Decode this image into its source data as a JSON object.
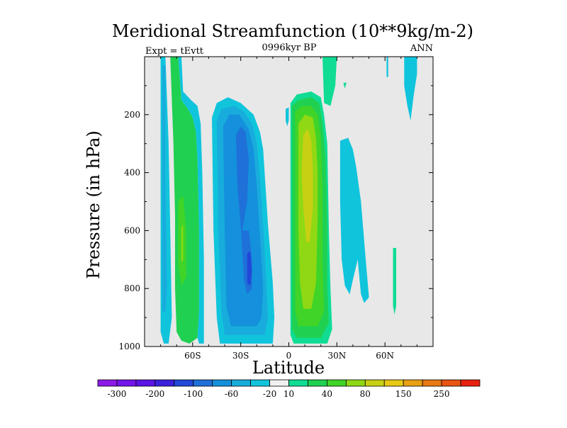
{
  "chart_data": {
    "type": "heatmap",
    "title": "Meridional Streamfunction (10**9kg/m-2)",
    "subtitle": "0996kyr BP",
    "left_annotation": "Expt = tEvtt",
    "right_annotation": "ANN",
    "xlabel": "Latitude",
    "ylabel": "Pressure (in hPa)",
    "xlim": [
      -90,
      90
    ],
    "ylim": [
      0,
      1000
    ],
    "y_inverted": true,
    "x_ticks": [
      {
        "value": -60,
        "label": "60S"
      },
      {
        "value": -30,
        "label": "30S"
      },
      {
        "value": 0,
        "label": "0"
      },
      {
        "value": 30,
        "label": "30N"
      },
      {
        "value": 60,
        "label": "60N"
      }
    ],
    "y_ticks": [
      {
        "value": 200,
        "label": "200"
      },
      {
        "value": 400,
        "label": "400"
      },
      {
        "value": 600,
        "label": "600"
      },
      {
        "value": 800,
        "label": "800"
      },
      {
        "value": 1000,
        "label": "1000"
      }
    ],
    "background_color": "#e8e8e8",
    "colorbar": {
      "colors": [
        "#8d19e6",
        "#7414ea",
        "#5a14e6",
        "#3b20dc",
        "#2148d8",
        "#1f70d8",
        "#1490dc",
        "#18acdc",
        "#10c4dc",
        "#f0f0f0",
        "#10dc94",
        "#20d050",
        "#40d428",
        "#90d814",
        "#c8d014",
        "#e8c814",
        "#e8a014",
        "#e87814",
        "#e85414",
        "#e82010"
      ],
      "labels": [
        {
          "after_index": 1,
          "text": "-300"
        },
        {
          "after_index": 3,
          "text": "-200"
        },
        {
          "after_index": 5,
          "text": "-100"
        },
        {
          "after_index": 7,
          "text": "-60"
        },
        {
          "after_index": 9,
          "text": "-20"
        },
        {
          "after_index": 10,
          "text": "10"
        },
        {
          "after_index": 12,
          "text": "40"
        },
        {
          "after_index": 14,
          "text": "80"
        },
        {
          "after_index": 16,
          "text": "150"
        },
        {
          "after_index": 18,
          "text": "250"
        }
      ]
    },
    "contours": [
      {
        "name": "sh-polar-cell-outer",
        "color": "#10c4dc",
        "points": [
          [
            -80,
            0
          ],
          [
            -77,
            0
          ],
          [
            -75,
            300
          ],
          [
            -74,
            600
          ],
          [
            -73,
            900
          ],
          [
            -75,
            990
          ],
          [
            -78,
            990
          ],
          [
            -80,
            950
          ],
          [
            -80,
            600
          ],
          [
            -80,
            300
          ]
        ]
      },
      {
        "name": "sh-polar-cell-inner",
        "color": "#18acdc",
        "points": [
          [
            -79,
            30
          ],
          [
            -77,
            30
          ],
          [
            -77,
            450
          ],
          [
            -76,
            800
          ],
          [
            -77,
            880
          ],
          [
            -79,
            880
          ],
          [
            -79,
            600
          ]
        ]
      },
      {
        "name": "sh-ferrel-outer",
        "color": "#20d050",
        "points": [
          [
            -74,
            0
          ],
          [
            -69,
            0
          ],
          [
            -67,
            150
          ],
          [
            -63,
            180
          ],
          [
            -60,
            210
          ],
          [
            -58,
            260
          ],
          [
            -57,
            350
          ],
          [
            -56,
            600
          ],
          [
            -56,
            880
          ],
          [
            -57,
            970
          ],
          [
            -62,
            990
          ],
          [
            -67,
            980
          ],
          [
            -70,
            950
          ],
          [
            -71,
            800
          ],
          [
            -71,
            550
          ],
          [
            -72,
            300
          ]
        ]
      },
      {
        "name": "sh-ferrel-inner",
        "color": "#40d428",
        "points": [
          [
            -69,
            500
          ],
          [
            -66,
            480
          ],
          [
            -64,
            600
          ],
          [
            -64,
            760
          ],
          [
            -67,
            790
          ],
          [
            -69,
            720
          ]
        ]
      },
      {
        "name": "sh-ferrel-core",
        "color": "#90d814",
        "points": [
          [
            -67,
            590
          ],
          [
            -66,
            580
          ],
          [
            -66,
            700
          ],
          [
            -67,
            710
          ]
        ]
      },
      {
        "name": "sh-ferrel-edge",
        "color": "#10c4dc",
        "points": [
          [
            -69,
            0
          ],
          [
            -67,
            0
          ],
          [
            -66,
            120
          ],
          [
            -61,
            150
          ],
          [
            -57,
            170
          ],
          [
            -55,
            230
          ],
          [
            -54,
            400
          ],
          [
            -53,
            700
          ],
          [
            -53,
            990
          ],
          [
            -56,
            990
          ],
          [
            -57,
            970
          ],
          [
            -56,
            880
          ],
          [
            -56,
            600
          ],
          [
            -57,
            350
          ],
          [
            -58,
            260
          ],
          [
            -60,
            210
          ],
          [
            -63,
            180
          ],
          [
            -67,
            150
          ]
        ]
      },
      {
        "name": "sh-hadley-outer",
        "color": "#10c4dc",
        "points": [
          [
            -48,
            210
          ],
          [
            -45,
            160
          ],
          [
            -38,
            140
          ],
          [
            -30,
            160
          ],
          [
            -26,
            180
          ],
          [
            -22,
            200
          ],
          [
            -18,
            260
          ],
          [
            -16,
            320
          ],
          [
            -13,
            580
          ],
          [
            -10,
            780
          ],
          [
            -9,
            900
          ],
          [
            -10,
            990
          ],
          [
            -43,
            990
          ],
          [
            -45,
            900
          ],
          [
            -47,
            600
          ]
        ]
      },
      {
        "name": "sh-hadley-mid",
        "color": "#18acdc",
        "points": [
          [
            -45,
            220
          ],
          [
            -42,
            180
          ],
          [
            -34,
            170
          ],
          [
            -28,
            190
          ],
          [
            -23,
            230
          ],
          [
            -20,
            300
          ],
          [
            -18,
            420
          ],
          [
            -16,
            580
          ],
          [
            -14,
            780
          ],
          [
            -13,
            900
          ],
          [
            -15,
            960
          ],
          [
            -40,
            960
          ],
          [
            -42,
            880
          ],
          [
            -44,
            600
          ]
        ]
      },
      {
        "name": "sh-hadley-inner",
        "color": "#1490dc",
        "points": [
          [
            -41,
            240
          ],
          [
            -37,
            200
          ],
          [
            -31,
            200
          ],
          [
            -25,
            250
          ],
          [
            -22,
            320
          ],
          [
            -20,
            450
          ],
          [
            -18,
            620
          ],
          [
            -16,
            800
          ],
          [
            -17,
            900
          ],
          [
            -20,
            930
          ],
          [
            -36,
            930
          ],
          [
            -39,
            860
          ],
          [
            -40,
            600
          ]
        ]
      },
      {
        "name": "sh-hadley-core",
        "color": "#1f70d8",
        "points": [
          [
            -33,
            270
          ],
          [
            -30,
            240
          ],
          [
            -27,
            260
          ],
          [
            -25,
            350
          ],
          [
            -26,
            500
          ],
          [
            -27,
            530
          ],
          [
            -29,
            600
          ],
          [
            -25,
            600
          ],
          [
            -23,
            700
          ],
          [
            -23,
            800
          ],
          [
            -26,
            820
          ],
          [
            -28,
            770
          ],
          [
            -30,
            580
          ],
          [
            -32,
            450
          ]
        ]
      },
      {
        "name": "sh-hadley-center",
        "color": "#2148d8",
        "points": [
          [
            -26,
            680
          ],
          [
            -24,
            670
          ],
          [
            -23,
            740
          ],
          [
            -24,
            790
          ],
          [
            -26,
            780
          ]
        ]
      },
      {
        "name": "nh-hadley-outer",
        "color": "#10dc94",
        "points": [
          [
            1,
            160
          ],
          [
            5,
            130
          ],
          [
            14,
            120
          ],
          [
            20,
            140
          ],
          [
            22,
            200
          ],
          [
            24,
            300
          ],
          [
            25,
            600
          ],
          [
            26,
            800
          ],
          [
            27,
            940
          ],
          [
            24,
            990
          ],
          [
            3,
            990
          ],
          [
            1,
            960
          ],
          [
            1,
            600
          ],
          [
            1,
            300
          ]
        ]
      },
      {
        "name": "nh-hadley-mid",
        "color": "#20d050",
        "points": [
          [
            2,
            170
          ],
          [
            6,
            150
          ],
          [
            14,
            140
          ],
          [
            19,
            160
          ],
          [
            21,
            230
          ],
          [
            23,
            350
          ],
          [
            24,
            600
          ],
          [
            24,
            800
          ],
          [
            25,
            920
          ],
          [
            20,
            970
          ],
          [
            5,
            970
          ],
          [
            2,
            940
          ],
          [
            2,
            600
          ],
          [
            2,
            300
          ]
        ]
      },
      {
        "name": "nh-hadley-inner",
        "color": "#40d428",
        "points": [
          [
            4,
            190
          ],
          [
            8,
            170
          ],
          [
            14,
            170
          ],
          [
            18,
            200
          ],
          [
            20,
            280
          ],
          [
            21,
            450
          ],
          [
            21,
            700
          ],
          [
            22,
            880
          ],
          [
            18,
            930
          ],
          [
            6,
            930
          ],
          [
            4,
            880
          ],
          [
            4,
            600
          ],
          [
            4,
            350
          ]
        ]
      },
      {
        "name": "nh-hadley-core",
        "color": "#90d814",
        "points": [
          [
            6,
            230
          ],
          [
            10,
            200
          ],
          [
            15,
            210
          ],
          [
            17,
            280
          ],
          [
            18,
            400
          ],
          [
            18,
            550
          ],
          [
            17,
            780
          ],
          [
            14,
            870
          ],
          [
            9,
            870
          ],
          [
            7,
            780
          ],
          [
            6,
            600
          ],
          [
            6,
            400
          ]
        ]
      },
      {
        "name": "nh-hadley-center",
        "color": "#c8d014",
        "points": [
          [
            9,
            270
          ],
          [
            12,
            250
          ],
          [
            14,
            290
          ],
          [
            15,
            400
          ],
          [
            15,
            520
          ],
          [
            13,
            640
          ],
          [
            11,
            640
          ],
          [
            9,
            520
          ],
          [
            8,
            400
          ]
        ]
      },
      {
        "name": "nh-upper-plume",
        "color": "#10dc94",
        "points": [
          [
            21,
            0
          ],
          [
            30,
            0
          ],
          [
            29,
            100
          ],
          [
            26,
            170
          ],
          [
            22,
            160
          ]
        ]
      },
      {
        "name": "nh-ferrel-cell",
        "color": "#10c4dc",
        "points": [
          [
            32,
            290
          ],
          [
            37,
            280
          ],
          [
            40,
            320
          ],
          [
            42,
            380
          ],
          [
            45,
            500
          ],
          [
            48,
            700
          ],
          [
            50,
            830
          ],
          [
            47,
            850
          ],
          [
            45,
            820
          ],
          [
            43,
            700
          ],
          [
            40,
            770
          ],
          [
            38,
            820
          ],
          [
            35,
            790
          ],
          [
            33,
            700
          ],
          [
            32,
            500
          ]
        ]
      },
      {
        "name": "nh-polar-upper",
        "color": "#10c4dc",
        "points": [
          [
            72,
            0
          ],
          [
            80,
            0
          ],
          [
            80,
            60
          ],
          [
            78,
            130
          ],
          [
            76,
            220
          ],
          [
            74,
            170
          ],
          [
            72,
            100
          ]
        ]
      },
      {
        "name": "nh-small-cell",
        "color": "#10dc94",
        "points": [
          [
            65,
            660
          ],
          [
            67,
            660
          ],
          [
            67,
            860
          ],
          [
            66,
            890
          ],
          [
            65,
            860
          ]
        ]
      },
      {
        "name": "nh-strip-upper",
        "color": "#10c4dc",
        "points": [
          [
            61,
            0
          ],
          [
            62,
            0
          ],
          [
            62,
            70
          ],
          [
            61,
            70
          ]
        ]
      },
      {
        "name": "sh-dot",
        "color": "#10c4dc",
        "points": [
          [
            -2,
            180
          ],
          [
            0,
            175
          ],
          [
            0,
            220
          ],
          [
            -1,
            240
          ],
          [
            -2,
            220
          ]
        ]
      },
      {
        "name": "nh-dot",
        "color": "#10dc94",
        "points": [
          [
            34,
            90
          ],
          [
            36,
            90
          ],
          [
            35,
            110
          ]
        ]
      }
    ]
  }
}
